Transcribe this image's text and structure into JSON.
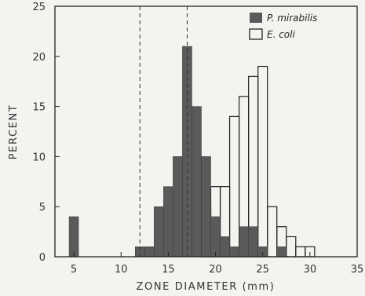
{
  "chart_data": {
    "type": "bar",
    "xlabel": "ZONE DIAMETER (mm)",
    "ylabel": "PERCENT",
    "xlim": [
      3,
      35
    ],
    "ylim": [
      0,
      25
    ],
    "bin_width": 1,
    "x_ticks": [
      5,
      10,
      15,
      20,
      25,
      30,
      35
    ],
    "y_ticks": [
      0,
      5,
      10,
      15,
      20,
      25
    ],
    "reference_lines_x": [
      12,
      17
    ],
    "legend_position": "top-right",
    "series": [
      {
        "name": "P. mirabilis",
        "style": "filled",
        "color": "#5a5a5a",
        "bins": [
          {
            "x": 5,
            "y": 4
          },
          {
            "x": 12,
            "y": 1
          },
          {
            "x": 13,
            "y": 1
          },
          {
            "x": 14,
            "y": 5
          },
          {
            "x": 15,
            "y": 7
          },
          {
            "x": 16,
            "y": 10
          },
          {
            "x": 17,
            "y": 21
          },
          {
            "x": 18,
            "y": 15
          },
          {
            "x": 19,
            "y": 10
          },
          {
            "x": 20,
            "y": 4
          },
          {
            "x": 21,
            "y": 2
          },
          {
            "x": 22,
            "y": 1
          },
          {
            "x": 23,
            "y": 3
          },
          {
            "x": 24,
            "y": 3
          },
          {
            "x": 25,
            "y": 1
          },
          {
            "x": 27,
            "y": 1
          }
        ]
      },
      {
        "name": "E. coli",
        "style": "outline",
        "color": "#222222",
        "bins": [
          {
            "x": 19,
            "y": 5
          },
          {
            "x": 20,
            "y": 7
          },
          {
            "x": 21,
            "y": 7
          },
          {
            "x": 22,
            "y": 14
          },
          {
            "x": 23,
            "y": 16
          },
          {
            "x": 24,
            "y": 18
          },
          {
            "x": 25,
            "y": 19
          },
          {
            "x": 26,
            "y": 5
          },
          {
            "x": 27,
            "y": 3
          },
          {
            "x": 28,
            "y": 2
          },
          {
            "x": 29,
            "y": 1
          },
          {
            "x": 30,
            "y": 1
          }
        ]
      }
    ]
  }
}
